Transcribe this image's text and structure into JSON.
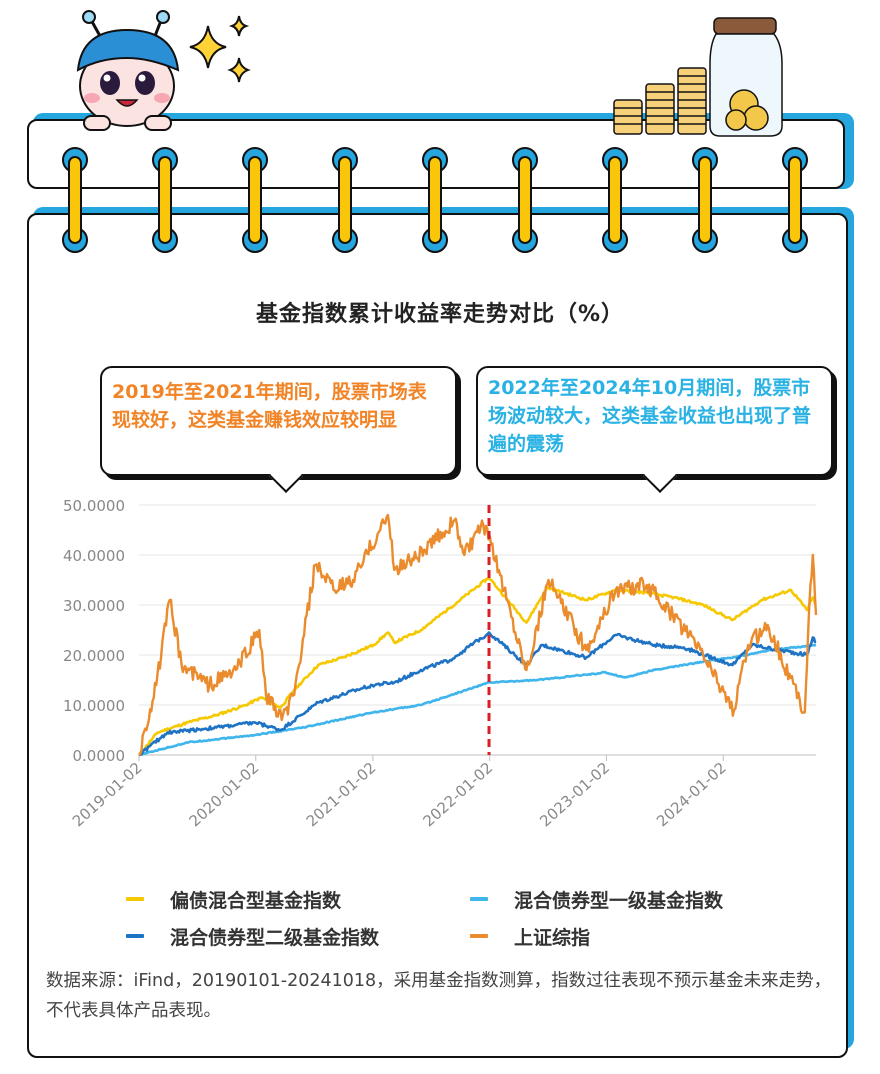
{
  "page": {
    "title": "基金指数累计收益率走势对比（%）",
    "colors": {
      "frame_blue": "#26a6df",
      "ring_yellow": "#f9c60a",
      "divider_red": "#d81f26"
    }
  },
  "annotations": [
    {
      "text": "2019年至2021年期间，股票市场表现较好，这类基金赚钱效应较明显",
      "color": "#f08427"
    },
    {
      "text": "2022年至2024年10月期间，股票市场波动较大，这类基金收益也出现了普遍的震荡",
      "color": "#29b2e3"
    }
  ],
  "source_note": "数据来源：iFind，20190101-20241018，采用基金指数测算，指数过往表现不预示基金未来走势，不代表具体产品表现。",
  "chart_data": {
    "type": "line",
    "title": "基金指数累计收益率走势对比（%）",
    "xlabel": "",
    "ylabel": "",
    "x_start": "2019-01-02",
    "x_end": "2024-10-18",
    "x_ticks": [
      "2019-01-02",
      "2020-01-02",
      "2021-01-02",
      "2022-01-02",
      "2023-01-02",
      "2024-01-02"
    ],
    "y_ticks": [
      "0.0000",
      "10.0000",
      "20.0000",
      "30.0000",
      "40.0000",
      "50.0000"
    ],
    "ylim": [
      0,
      50
    ],
    "grid": "horizontal",
    "legend_position": "bottom",
    "reference_line": {
      "x": "2021-12-31",
      "style": "dashed"
    },
    "series": [
      {
        "name": "偏债混合型基金指数",
        "color": "#f6c800",
        "points": [
          [
            "2019-01-02",
            0
          ],
          [
            "2019-03-01",
            4.5
          ],
          [
            "2019-06-03",
            6.5
          ],
          [
            "2019-09-02",
            8
          ],
          [
            "2019-12-02",
            10
          ],
          [
            "2020-01-20",
            11.5
          ],
          [
            "2020-03-20",
            9.5
          ],
          [
            "2020-05-01",
            13
          ],
          [
            "2020-07-15",
            18
          ],
          [
            "2020-10-01",
            19.5
          ],
          [
            "2021-01-04",
            22
          ],
          [
            "2021-02-18",
            24.5
          ],
          [
            "2021-03-10",
            22.5
          ],
          [
            "2021-06-01",
            25
          ],
          [
            "2021-09-01",
            29.5
          ],
          [
            "2021-12-31",
            35.5
          ],
          [
            "2022-02-01",
            33
          ],
          [
            "2022-04-27",
            26.5
          ],
          [
            "2022-07-01",
            33.5
          ],
          [
            "2022-10-31",
            31
          ],
          [
            "2023-01-31",
            33
          ],
          [
            "2023-05-01",
            32.5
          ],
          [
            "2023-08-01",
            31.5
          ],
          [
            "2023-11-01",
            30
          ],
          [
            "2024-01-31",
            27
          ],
          [
            "2024-05-01",
            31
          ],
          [
            "2024-08-01",
            33
          ],
          [
            "2024-09-20",
            29
          ],
          [
            "2024-10-08",
            31.5
          ],
          [
            "2024-10-18",
            30
          ]
        ]
      },
      {
        "name": "混合债券型一级基金指数",
        "color": "#3fb5ec",
        "points": [
          [
            "2019-01-02",
            0
          ],
          [
            "2019-06-01",
            2.5
          ],
          [
            "2019-12-31",
            4
          ],
          [
            "2020-06-01",
            5.5
          ],
          [
            "2020-12-31",
            8.5
          ],
          [
            "2021-06-01",
            10
          ],
          [
            "2021-12-31",
            14.5
          ],
          [
            "2022-06-01",
            15
          ],
          [
            "2022-12-31",
            16.5
          ],
          [
            "2023-03-01",
            15.5
          ],
          [
            "2023-06-01",
            17
          ],
          [
            "2023-12-01",
            19
          ],
          [
            "2024-02-01",
            19.5
          ],
          [
            "2024-06-01",
            21
          ],
          [
            "2024-10-18",
            22
          ]
        ]
      },
      {
        "name": "混合债券型二级基金指数",
        "color": "#1f73c4",
        "points": [
          [
            "2019-01-02",
            0
          ],
          [
            "2019-04-01",
            4.5
          ],
          [
            "2019-09-01",
            5.5
          ],
          [
            "2019-12-31",
            6.5
          ],
          [
            "2020-03-20",
            5
          ],
          [
            "2020-07-15",
            10.5
          ],
          [
            "2020-12-31",
            14
          ],
          [
            "2021-03-10",
            14.5
          ],
          [
            "2021-06-01",
            17
          ],
          [
            "2021-09-01",
            19
          ],
          [
            "2021-12-31",
            24.5
          ],
          [
            "2022-04-27",
            18
          ],
          [
            "2022-06-15",
            22
          ],
          [
            "2022-10-31",
            19.5
          ],
          [
            "2023-01-31",
            24
          ],
          [
            "2023-06-01",
            22
          ],
          [
            "2023-09-01",
            21.5
          ],
          [
            "2024-01-31",
            18
          ],
          [
            "2024-04-01",
            22
          ],
          [
            "2024-09-20",
            20
          ],
          [
            "2024-10-08",
            23.5
          ],
          [
            "2024-10-18",
            22.5
          ]
        ]
      },
      {
        "name": "上证综指",
        "color": "#ea8c2d",
        "points": [
          [
            "2019-01-02",
            0
          ],
          [
            "2019-02-25",
            14
          ],
          [
            "2019-04-08",
            31
          ],
          [
            "2019-05-15",
            18
          ],
          [
            "2019-08-10",
            14
          ],
          [
            "2019-11-01",
            17
          ],
          [
            "2020-01-13",
            25
          ],
          [
            "2020-02-03",
            12
          ],
          [
            "2020-03-23",
            7
          ],
          [
            "2020-05-01",
            12
          ],
          [
            "2020-07-06",
            38
          ],
          [
            "2020-09-01",
            33
          ],
          [
            "2020-11-01",
            35
          ],
          [
            "2021-02-18",
            48
          ],
          [
            "2021-03-10",
            37
          ],
          [
            "2021-06-15",
            41
          ],
          [
            "2021-09-14",
            47
          ],
          [
            "2021-10-15",
            40
          ],
          [
            "2021-12-13",
            46
          ],
          [
            "2022-01-31",
            37
          ],
          [
            "2022-04-27",
            17
          ],
          [
            "2022-07-05",
            35
          ],
          [
            "2022-10-31",
            21
          ],
          [
            "2023-01-31",
            33
          ],
          [
            "2023-05-08",
            34
          ],
          [
            "2023-07-01",
            30
          ],
          [
            "2023-10-23",
            21
          ],
          [
            "2024-02-05",
            9
          ],
          [
            "2024-03-20",
            22
          ],
          [
            "2024-05-20",
            26
          ],
          [
            "2024-09-13",
            8.5
          ],
          [
            "2024-09-27",
            30
          ],
          [
            "2024-10-08",
            40
          ],
          [
            "2024-10-18",
            28
          ]
        ]
      }
    ]
  }
}
